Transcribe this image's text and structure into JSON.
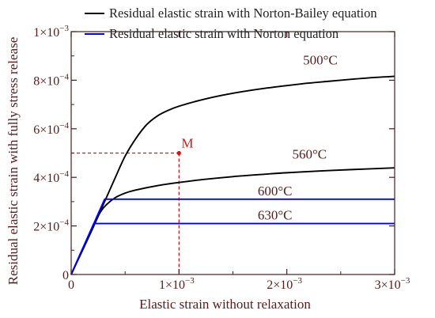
{
  "chart_data": {
    "type": "line",
    "xlabel": "Elastic strain without relaxation",
    "ylabel": "Residual elastic strain with fully stress release",
    "xlim": [
      0,
      0.003
    ],
    "ylim": [
      0,
      0.001
    ],
    "x_ticks": [
      {
        "value": 0,
        "mant": "0",
        "exp": ""
      },
      {
        "value": 0.001,
        "mant": "1×10",
        "exp": "−3"
      },
      {
        "value": 0.002,
        "mant": "2×10",
        "exp": "−3"
      },
      {
        "value": 0.003,
        "mant": "3×10",
        "exp": "−3"
      }
    ],
    "y_ticks": [
      {
        "value": 0,
        "mant": "0",
        "exp": ""
      },
      {
        "value": 0.0002,
        "mant": "2×10",
        "exp": "−4"
      },
      {
        "value": 0.0004,
        "mant": "4×10",
        "exp": "−4"
      },
      {
        "value": 0.0006,
        "mant": "6×10",
        "exp": "−4"
      },
      {
        "value": 0.0008,
        "mant": "8×10",
        "exp": "−4"
      },
      {
        "value": 0.001,
        "mant": "1×10",
        "exp": "−3"
      }
    ],
    "legend_position": "top",
    "legend": [
      {
        "label": "Residual elastic strain with Norton-Bailey equation",
        "color": "#000000"
      },
      {
        "label": "Residual elastic strain with Norton equation",
        "color": "#0000ff"
      }
    ],
    "series": [
      {
        "label": "500°C",
        "model": "Norton-Bailey",
        "color": "#000000",
        "points": [
          [
            0,
            0
          ],
          [
            0.0002,
            0.00019
          ],
          [
            0.0003,
            0.00029
          ],
          [
            0.0004,
            0.00039
          ],
          [
            0.0005,
            0.000487
          ],
          [
            0.0006,
            0.00056
          ],
          [
            0.0007,
            0.000617
          ],
          [
            0.0008,
            0.000653
          ],
          [
            0.0009,
            0.000676
          ],
          [
            0.001,
            0.000693
          ],
          [
            0.0012,
            0.000718
          ],
          [
            0.0014,
            0.000738
          ],
          [
            0.0016,
            0.000754
          ],
          [
            0.0018,
            0.000767
          ],
          [
            0.002,
            0.000778
          ],
          [
            0.0022,
            0.000788
          ],
          [
            0.0024,
            0.000796
          ],
          [
            0.0026,
            0.000804
          ],
          [
            0.0028,
            0.000811
          ],
          [
            0.003,
            0.000816
          ]
        ]
      },
      {
        "label": "560°C",
        "model": "Norton-Bailey",
        "color": "#000000",
        "points": [
          [
            0,
            0
          ],
          [
            0.0001,
            0.0001
          ],
          [
            0.0002,
            0.000195
          ],
          [
            0.00025,
            0.00024
          ],
          [
            0.0003,
            0.000275
          ],
          [
            0.0004,
            0.000314
          ],
          [
            0.0005,
            0.000335
          ],
          [
            0.0006,
            0.000348
          ],
          [
            0.0008,
            0.000366
          ],
          [
            0.001,
            0.000379
          ],
          [
            0.0012,
            0.00039
          ],
          [
            0.0015,
            0.000403
          ],
          [
            0.0018,
            0.000413
          ],
          [
            0.002,
            0.000419
          ],
          [
            0.0023,
            0.000426
          ],
          [
            0.0026,
            0.000432
          ],
          [
            0.003,
            0.000439
          ]
        ]
      },
      {
        "label": "600°C",
        "model": "Norton",
        "color": "#0000ff",
        "points": [
          [
            0,
            0
          ],
          [
            0.00031,
            0.00031
          ],
          [
            0.003,
            0.00031
          ]
        ]
      },
      {
        "label": "630°C",
        "model": "Norton",
        "color": "#0000ff",
        "points": [
          [
            0,
            0
          ],
          [
            0.00021,
            0.00021
          ],
          [
            0.003,
            0.00021
          ]
        ]
      }
    ],
    "annotations": [
      {
        "label": "M",
        "x": 0.001,
        "y": 0.0005,
        "color": "#e01010",
        "style": "dashed-guides"
      }
    ]
  }
}
